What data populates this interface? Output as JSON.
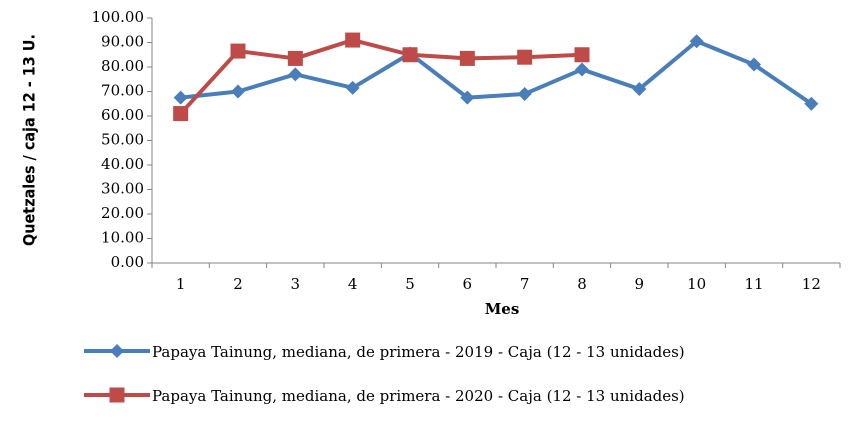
{
  "chart_data": {
    "type": "line",
    "y_label": "Quetzales / caja 12 - 13 U.",
    "x_label": "Mes",
    "categories": [
      "1",
      "2",
      "3",
      "4",
      "5",
      "6",
      "7",
      "8",
      "9",
      "10",
      "11",
      "12"
    ],
    "series": [
      {
        "name": "Papaya Tainung, mediana, de primera - 2019 - Caja (12 - 13 unidades)",
        "color": "#4a7ebb",
        "marker": "diamond",
        "values": [
          67.5,
          70,
          77,
          71.5,
          85.5,
          67.5,
          69,
          79,
          71,
          90.5,
          81,
          65
        ]
      },
      {
        "name": "Papaya Tainung, mediana, de primera - 2020 - Caja (12 - 13 unidades)",
        "color": "#be4b48",
        "marker": "square",
        "values": [
          61,
          86.5,
          83.5,
          91,
          85,
          83.5,
          84,
          85,
          null,
          null,
          null,
          null
        ]
      }
    ],
    "ylim": [
      0,
      100
    ],
    "yticks": [
      {
        "value": 0,
        "label": "0.00"
      },
      {
        "value": 10,
        "label": "10.00"
      },
      {
        "value": 20,
        "label": "20.00"
      },
      {
        "value": 30,
        "label": "30.00"
      },
      {
        "value": 40,
        "label": "40.00"
      },
      {
        "value": 50,
        "label": "50.00"
      },
      {
        "value": 60,
        "label": "60.00"
      },
      {
        "value": 70,
        "label": "70.00"
      },
      {
        "value": 80,
        "label": "80.00"
      },
      {
        "value": 90,
        "label": "90.00"
      },
      {
        "value": 100,
        "label": "100.00"
      }
    ],
    "grid": false,
    "legend": "bottom"
  }
}
